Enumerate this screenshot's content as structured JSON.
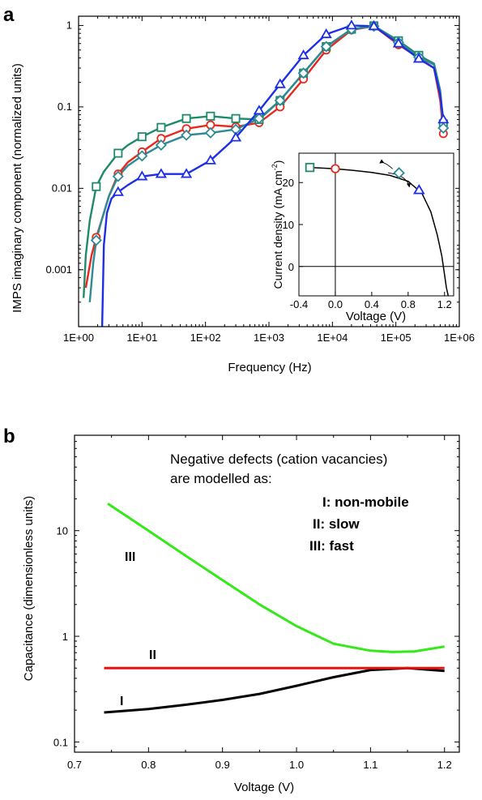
{
  "figure": {
    "panel_a_label": "a",
    "panel_b_label": "b"
  },
  "chart_data": [
    {
      "panel": "a",
      "type": "line",
      "xlabel": "Frequency (Hz)",
      "ylabel": "IMPS imaginary component (normalized units)",
      "xscale": "log",
      "yscale": "log",
      "xlim": [
        1,
        1000000
      ],
      "ylim": [
        0.0002,
        1.3
      ],
      "xticks": [
        1,
        10,
        100,
        1000,
        10000,
        100000,
        1000000
      ],
      "xtick_labels": [
        "1E+00",
        "1E+01",
        "1E+02",
        "1E+03",
        "1E+04",
        "1E+05",
        "1E+06"
      ],
      "yticks": [
        0.001,
        0.01,
        0.1,
        1
      ],
      "ytick_labels": [
        "0.001",
        "0.01",
        "0.1",
        "1"
      ],
      "grid": false,
      "series": [
        {
          "color": "#e8281e",
          "marker": "circle",
          "x": [
            1.3,
            1.6,
            1.9,
            2.3,
            3,
            4.2,
            6,
            10,
            20,
            50,
            120,
            300,
            700,
            1500,
            3500,
            8000,
            20000,
            45000,
            110000,
            230000,
            400000,
            500000,
            560000
          ],
          "y": [
            0.0006,
            0.0015,
            0.0025,
            0.004,
            0.008,
            0.015,
            0.021,
            0.028,
            0.041,
            0.054,
            0.06,
            0.057,
            0.064,
            0.1,
            0.22,
            0.5,
            0.88,
            0.98,
            0.58,
            0.4,
            0.3,
            0.12,
            0.047
          ],
          "markers_x": [
            1.9,
            4.2,
            10,
            20,
            50,
            120,
            300,
            700,
            1500,
            3500,
            8000,
            20000,
            45000,
            110000,
            230000,
            560000
          ],
          "markers_y": [
            0.0025,
            0.015,
            0.028,
            0.041,
            0.054,
            0.06,
            0.057,
            0.064,
            0.1,
            0.22,
            0.5,
            0.88,
            0.98,
            0.58,
            0.4,
            0.047
          ]
        },
        {
          "color": "#1f8a6a",
          "marker": "square",
          "x": [
            1.2,
            1.3,
            1.5,
            1.9,
            2.5,
            4.2,
            6,
            10,
            20,
            50,
            120,
            300,
            700,
            1500,
            3500,
            8000,
            20000,
            45000,
            110000,
            230000,
            400000,
            500000,
            560000
          ],
          "y": [
            0.00045,
            0.0015,
            0.004,
            0.0105,
            0.016,
            0.027,
            0.034,
            0.043,
            0.056,
            0.072,
            0.077,
            0.072,
            0.07,
            0.12,
            0.26,
            0.55,
            0.9,
            0.99,
            0.65,
            0.43,
            0.34,
            0.16,
            0.062
          ],
          "markers_x": [
            1.9,
            4.2,
            10,
            20,
            50,
            120,
            300,
            700,
            1500,
            3500,
            8000,
            20000,
            45000,
            110000,
            230000,
            560000
          ],
          "markers_y": [
            0.0105,
            0.027,
            0.043,
            0.056,
            0.072,
            0.077,
            0.072,
            0.07,
            0.12,
            0.26,
            0.55,
            0.9,
            0.99,
            0.65,
            0.43,
            0.062
          ]
        },
        {
          "color": "#2e8b95",
          "marker": "diamond",
          "x": [
            1.5,
            1.7,
            1.9,
            2.3,
            3,
            4.2,
            6,
            10,
            20,
            50,
            120,
            300,
            700,
            1500,
            3500,
            8000,
            20000,
            45000,
            110000,
            230000,
            400000,
            500000,
            560000
          ],
          "y": [
            0.0004,
            0.0012,
            0.0023,
            0.004,
            0.008,
            0.014,
            0.019,
            0.025,
            0.034,
            0.045,
            0.048,
            0.053,
            0.072,
            0.12,
            0.26,
            0.55,
            0.9,
            0.98,
            0.62,
            0.41,
            0.33,
            0.15,
            0.055
          ],
          "markers_x": [
            1.9,
            4.2,
            10,
            20,
            50,
            120,
            300,
            700,
            1500,
            3500,
            8000,
            20000,
            45000,
            110000,
            230000,
            560000
          ],
          "markers_y": [
            0.0023,
            0.014,
            0.025,
            0.034,
            0.045,
            0.048,
            0.053,
            0.072,
            0.12,
            0.26,
            0.55,
            0.9,
            0.98,
            0.62,
            0.41,
            0.055
          ]
        },
        {
          "color": "#1c2fe6",
          "marker": "triangle",
          "x": [
            2.35,
            2.5,
            2.8,
            3.3,
            4.2,
            6,
            10,
            20,
            50,
            120,
            300,
            700,
            1500,
            3500,
            8000,
            20000,
            45000,
            110000,
            230000,
            400000,
            500000,
            560000
          ],
          "y": [
            0.0002,
            0.002,
            0.005,
            0.0075,
            0.009,
            0.011,
            0.014,
            0.015,
            0.015,
            0.022,
            0.042,
            0.09,
            0.19,
            0.43,
            0.78,
            1.0,
            0.98,
            0.6,
            0.39,
            0.3,
            0.14,
            0.07
          ],
          "markers_x": [
            4.2,
            10,
            20,
            50,
            120,
            300,
            700,
            1500,
            3500,
            8000,
            20000,
            45000,
            110000,
            230000,
            560000
          ],
          "markers_y": [
            0.009,
            0.014,
            0.015,
            0.015,
            0.022,
            0.042,
            0.09,
            0.19,
            0.43,
            0.78,
            1.0,
            0.98,
            0.6,
            0.39,
            0.07
          ]
        }
      ],
      "inset": {
        "type": "line",
        "xlabel": "Voltage (V)",
        "ylabel": "Current density (mA cm<sup>-2</sup>)",
        "ylabel_main": "Current density (mA cm",
        "ylabel_sup": "-2",
        "ylabel_tail": ")",
        "xlim": [
          -0.4,
          1.3
        ],
        "ylim": [
          -7,
          27
        ],
        "xticks": [
          -0.4,
          0,
          0.4,
          0.8,
          1.2
        ],
        "xtick_labels": [
          "-0.4",
          "0.0",
          "0.4",
          "0.8",
          "1.2"
        ],
        "yticks": [
          0,
          10,
          20
        ],
        "ytick_labels": [
          "0",
          "10",
          "20"
        ],
        "jv_curve": {
          "color": "#000000",
          "x": [
            -0.28,
            -0.1,
            0.0,
            0.2,
            0.4,
            0.6,
            0.8,
            0.95,
            1.05,
            1.12,
            1.17,
            1.2,
            1.22,
            1.24
          ],
          "y": [
            23.6,
            23.4,
            23.3,
            22.9,
            22.4,
            21.7,
            20.3,
            17.5,
            13.0,
            7.5,
            2.5,
            -2.0,
            -5.0,
            -7.0
          ]
        },
        "markers": [
          {
            "color": "#1f8a6a",
            "marker": "square",
            "x": -0.28,
            "y": 23.6
          },
          {
            "color": "#e8281e",
            "marker": "circle",
            "x": 0.0,
            "y": 23.3
          },
          {
            "color": "#2e8b95",
            "marker": "diamond",
            "x": 0.7,
            "y": 22.3
          },
          {
            "color": "#1c2fe6",
            "marker": "triangle",
            "x": 0.92,
            "y": 18.2
          }
        ]
      }
    },
    {
      "panel": "b",
      "type": "line",
      "xlabel": "Voltage (V)",
      "ylabel": "Capacitance (dimensionless units)",
      "xscale": "linear",
      "yscale": "log",
      "xlim": [
        0.7,
        1.22
      ],
      "ylim": [
        0.08,
        80
      ],
      "xticks": [
        0.7,
        0.8,
        0.9,
        1.0,
        1.1,
        1.2
      ],
      "xtick_labels": [
        "0.7",
        "0.8",
        "0.9",
        "1.0",
        "1.1",
        "1.2"
      ],
      "yticks": [
        0.1,
        1,
        10
      ],
      "ytick_labels": [
        "0.1",
        "1",
        "10"
      ],
      "grid": false,
      "annotation_lines": [
        "Negative defects (cation vacancies)",
        "are modelled as:"
      ],
      "legend_entries": [
        "I: non-mobile",
        "II: slow",
        "III: fast"
      ],
      "series": [
        {
          "name": "I",
          "color": "#000000",
          "x": [
            0.74,
            0.8,
            0.85,
            0.9,
            0.95,
            1.0,
            1.05,
            1.1,
            1.15,
            1.2
          ],
          "y": [
            0.19,
            0.205,
            0.225,
            0.25,
            0.285,
            0.34,
            0.41,
            0.48,
            0.5,
            0.47
          ]
        },
        {
          "name": "II",
          "color": "#e8100a",
          "x": [
            0.74,
            0.8,
            0.9,
            1.0,
            1.1,
            1.2
          ],
          "y": [
            0.5,
            0.5,
            0.5,
            0.5,
            0.5,
            0.5
          ]
        },
        {
          "name": "III",
          "color": "#35e81a",
          "x": [
            0.745,
            0.8,
            0.85,
            0.9,
            0.95,
            1.0,
            1.05,
            1.1,
            1.13,
            1.16,
            1.2
          ],
          "y": [
            18,
            10,
            5.8,
            3.4,
            2.0,
            1.25,
            0.85,
            0.73,
            0.71,
            0.72,
            0.8
          ]
        }
      ]
    }
  ]
}
